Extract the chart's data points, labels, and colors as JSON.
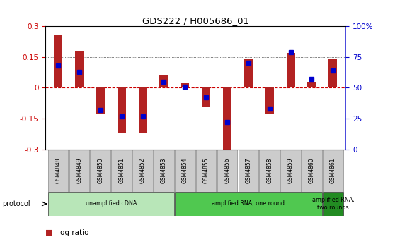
{
  "title": "GDS222 / H005686_01",
  "samples": [
    "GSM4848",
    "GSM4849",
    "GSM4850",
    "GSM4851",
    "GSM4852",
    "GSM4853",
    "GSM4854",
    "GSM4855",
    "GSM4856",
    "GSM4857",
    "GSM4858",
    "GSM4859",
    "GSM4860",
    "GSM4861"
  ],
  "log_ratio": [
    0.26,
    0.18,
    -0.13,
    -0.22,
    -0.22,
    0.06,
    0.02,
    -0.09,
    -0.3,
    0.14,
    -0.13,
    0.17,
    0.03,
    0.14
  ],
  "percentile": [
    68,
    63,
    32,
    27,
    27,
    55,
    51,
    42,
    22,
    70,
    33,
    79,
    57,
    64
  ],
  "ylim_left": [
    -0.3,
    0.3
  ],
  "ylim_right": [
    0,
    100
  ],
  "bar_color": "#b22222",
  "dot_color": "#0000cd",
  "zero_line_color": "#cc0000",
  "bg_color": "#ffffff",
  "tick_label_color_left": "#cc0000",
  "tick_label_color_right": "#0000cd",
  "proto_groups": [
    {
      "start": 0,
      "end": 5,
      "color": "#b8e6b8",
      "label": "unamplified cDNA"
    },
    {
      "start": 6,
      "end": 12,
      "color": "#50c850",
      "label": "amplified RNA, one round"
    },
    {
      "start": 13,
      "end": 13,
      "color": "#228b22",
      "label": "amplified RNA,\ntwo rounds"
    }
  ]
}
